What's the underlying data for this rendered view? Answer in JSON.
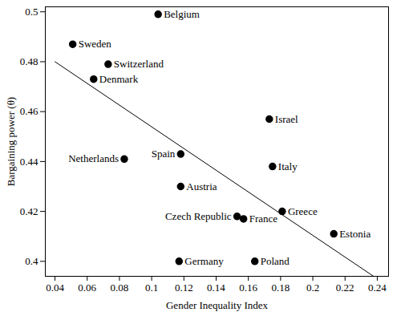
{
  "chart_data": {
    "type": "scatter",
    "x_label": "Gender Inequality Index",
    "y_label": "Bargaining power (θ)",
    "labels": [
      "Belgium",
      "Sweden",
      "Switzerland",
      "Denmark",
      "Israel",
      "Netherlands",
      "Spain",
      "Italy",
      "Austria",
      "Greece",
      "Czech Republic",
      "France",
      "Estonia",
      "Germany",
      "Poland"
    ],
    "x": [
      0.104,
      0.051,
      0.073,
      0.064,
      0.173,
      0.083,
      0.118,
      0.175,
      0.118,
      0.181,
      0.153,
      0.157,
      0.213,
      0.117,
      0.164
    ],
    "values": [
      0.499,
      0.487,
      0.479,
      0.473,
      0.457,
      0.441,
      0.443,
      0.438,
      0.43,
      0.42,
      0.418,
      0.417,
      0.411,
      0.4,
      0.4
    ],
    "color": "#000000",
    "marker": "circle",
    "trend": {
      "type": "line",
      "x": [
        0.04,
        0.24
      ],
      "values": [
        0.48,
        0.393
      ],
      "color": "#000000",
      "line_style": "solid"
    },
    "xlim": [
      0.034,
      0.247
    ],
    "ylim": [
      0.394,
      0.502
    ],
    "xticks": [
      0.04,
      0.06,
      0.08,
      0.1,
      0.12,
      0.14,
      0.16,
      0.18,
      0.2,
      0.22,
      0.24
    ],
    "yticks": [
      0.4,
      0.42,
      0.44,
      0.46,
      0.48,
      0.5
    ],
    "grid": false
  }
}
